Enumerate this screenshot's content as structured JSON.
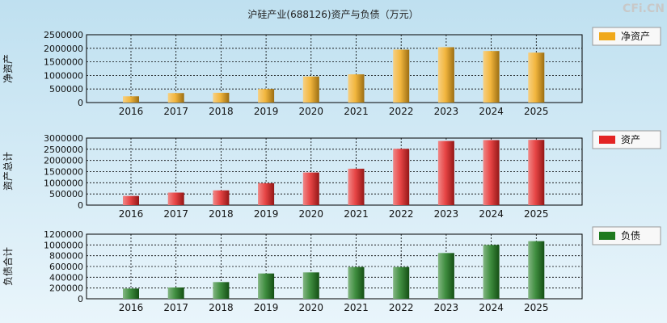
{
  "title": "沪硅产业(688126)资产与负债（万元）",
  "brand": "CFi.CN",
  "colors": {
    "background_top": "#bfe0f0",
    "background_bottom": "#e9f5fb",
    "net_assets": "#f0a91c",
    "total_assets": "#e32424",
    "liabilities": "#1e7a1e"
  },
  "chart_data": [
    {
      "type": "bar",
      "title": "",
      "ylabel": "净资产",
      "legend": "净资产",
      "color_key": "net_assets",
      "categories": [
        "2016",
        "2017",
        "2018",
        "2019",
        "2020",
        "2021",
        "2022",
        "2023",
        "2024",
        "2025"
      ],
      "values": [
        230000,
        350000,
        360000,
        500000,
        960000,
        1040000,
        1950000,
        2040000,
        1900000,
        1840000
      ],
      "ylim": [
        0,
        2500000
      ],
      "yticks": [
        0,
        500000,
        1000000,
        1500000,
        2000000,
        2500000
      ],
      "grid": true
    },
    {
      "type": "bar",
      "title": "",
      "ylabel": "资产总计",
      "legend": "资产",
      "color_key": "total_assets",
      "categories": [
        "2016",
        "2017",
        "2018",
        "2019",
        "2020",
        "2021",
        "2022",
        "2023",
        "2024",
        "2025"
      ],
      "values": [
        410000,
        560000,
        660000,
        980000,
        1460000,
        1630000,
        2520000,
        2870000,
        2910000,
        2920000
      ],
      "ylim": [
        0,
        3000000
      ],
      "yticks": [
        0,
        500000,
        1000000,
        1500000,
        2000000,
        2500000,
        3000000
      ],
      "grid": true
    },
    {
      "type": "bar",
      "title": "",
      "ylabel": "负债合计",
      "legend": "负债",
      "color_key": "liabilities",
      "categories": [
        "2016",
        "2017",
        "2018",
        "2019",
        "2020",
        "2021",
        "2022",
        "2023",
        "2024",
        "2025"
      ],
      "values": [
        190000,
        210000,
        310000,
        470000,
        490000,
        590000,
        590000,
        850000,
        1000000,
        1070000
      ],
      "ylim": [
        0,
        1200000
      ],
      "yticks": [
        0,
        200000,
        400000,
        600000,
        800000,
        1000000,
        1200000
      ],
      "grid": true
    }
  ]
}
